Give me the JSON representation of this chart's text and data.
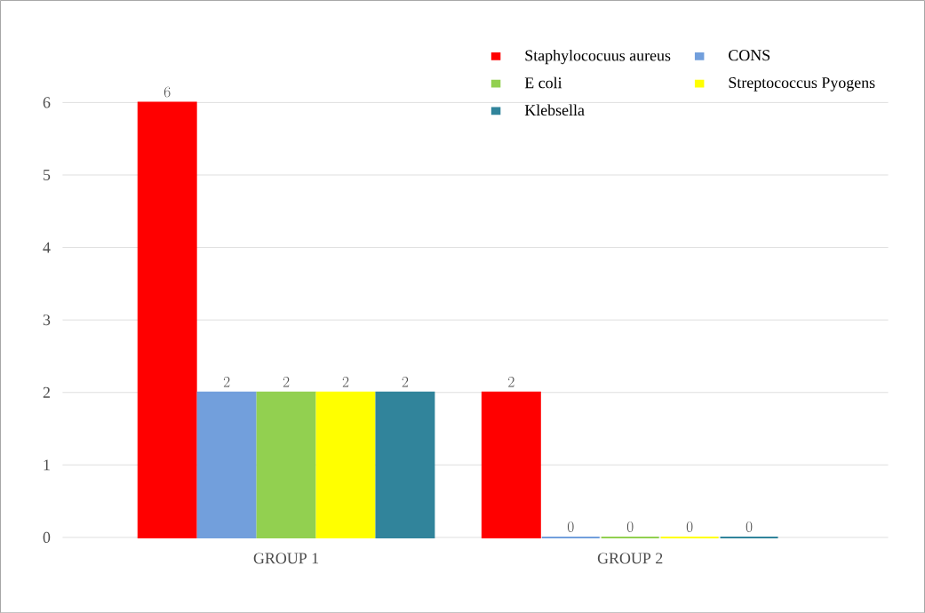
{
  "chart_data": {
    "type": "bar",
    "categories": [
      "GROUP 1",
      "GROUP 2"
    ],
    "series": [
      {
        "name": "Staphylococuus aureus",
        "color": "#ff0000",
        "values": [
          6,
          2
        ]
      },
      {
        "name": "CONS",
        "color": "#729fdc",
        "values": [
          2,
          0
        ]
      },
      {
        "name": "E coli",
        "color": "#92d050",
        "values": [
          2,
          0
        ]
      },
      {
        "name": "Streptococcus Pyogens",
        "color": "#ffff00",
        "values": [
          2,
          0
        ]
      },
      {
        "name": "Klebsella",
        "color": "#31849b",
        "values": [
          2,
          0
        ]
      }
    ],
    "ylim": [
      0,
      6
    ],
    "yticks": [
      0,
      1,
      2,
      3,
      4,
      5,
      6
    ],
    "grid": "y",
    "legend": "top right",
    "data_labels": true
  }
}
